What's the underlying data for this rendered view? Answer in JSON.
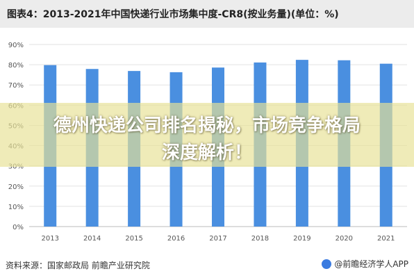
{
  "chart_data": {
    "type": "bar",
    "title": "图表4：2013-2021年中国快递行业市场集中度-CR8(按业务量)(单位：%)",
    "categories": [
      "2013",
      "2014",
      "2015",
      "2016",
      "2017",
      "2018",
      "2019",
      "2020",
      "2021"
    ],
    "values": [
      79.8,
      77.9,
      76.9,
      76.3,
      78.6,
      81.1,
      82.4,
      82.2,
      80.5
    ],
    "yticks": [
      "0%",
      "10%",
      "20%",
      "30%",
      "40%",
      "50%",
      "60%",
      "70%",
      "80%",
      "90%"
    ],
    "ylim": [
      0,
      90
    ],
    "bar_color": "#4a8fe0",
    "grid": true,
    "source": "资料来源：国家邮政局 前瞻产业研究院",
    "watermark": "@前瞻经济学人APP"
  },
  "overlay": {
    "line1": "德州快递公司排名揭秘，市场竞争格局",
    "line2": "深度解析！",
    "band_color": "#e8e296"
  }
}
